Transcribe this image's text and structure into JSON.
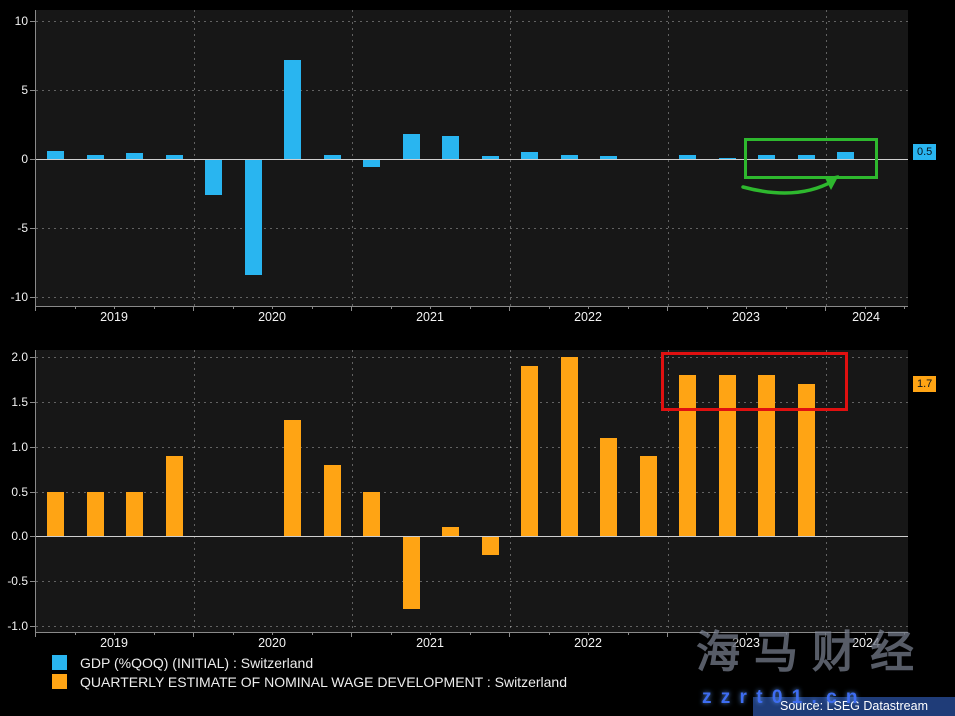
{
  "page": {
    "bg": "#000000",
    "panel_bg": "#171717"
  },
  "chart_data": [
    {
      "type": "bar",
      "series_name": "GDP (%QOQ) (INITIAL) : Switzerland",
      "bar_color": "#29b5f0",
      "ylim": [
        -10,
        10
      ],
      "yticks": [
        10,
        5,
        0,
        -5,
        -10
      ],
      "ytick_labels": [
        "10",
        "5",
        "0",
        "-5",
        "-10"
      ],
      "x_labels": [
        "2019",
        "2020",
        "2021",
        "2022",
        "2023",
        "2024"
      ],
      "x_frequency": "quarterly",
      "x_start": "2019 Q1",
      "values": [
        0.6,
        0.3,
        0.4,
        0.3,
        -2.5,
        -8.3,
        7.2,
        0.3,
        -0.5,
        1.8,
        1.7,
        0.2,
        0.5,
        0.3,
        0.2,
        0.0,
        0.3,
        0.1,
        0.3,
        0.3,
        0.5
      ],
      "last_value": 0.5,
      "last_value_label": "0.5",
      "grid": "dotted",
      "legend_position": "bottom-left"
    },
    {
      "type": "bar",
      "series_name": "QUARTERLY ESTIMATE OF NOMINAL WAGE DEVELOPMENT : Switzerland",
      "bar_color": "#ffa414",
      "ylim": [
        -1.0,
        2.0
      ],
      "yticks": [
        2.0,
        1.5,
        1.0,
        0.5,
        0.0,
        -0.5,
        -1.0
      ],
      "ytick_labels": [
        "2.0",
        "1.5",
        "1.0",
        "0.5",
        "0.0",
        "-0.5",
        "-1.0"
      ],
      "x_labels": [
        "2019",
        "2020",
        "2021",
        "2022",
        "2023",
        "2024"
      ],
      "x_frequency": "quarterly",
      "x_start": "2019 Q1",
      "values": [
        0.5,
        0.5,
        0.5,
        0.9,
        0.0,
        0.0,
        1.3,
        0.8,
        0.5,
        -0.8,
        0.1,
        -0.2,
        1.9,
        2.0,
        1.1,
        0.9,
        1.8,
        1.8,
        1.8,
        1.7
      ],
      "last_value": 1.7,
      "last_value_label": "1.7",
      "grid": "dotted",
      "legend_position": "bottom-left"
    }
  ],
  "legend": [
    {
      "label": "GDP (%QOQ) (INITIAL) : Switzerland",
      "color": "#29b5f0"
    },
    {
      "label": "QUARTERLY ESTIMATE OF NOMINAL WAGE DEVELOPMENT : Switzerland",
      "color": "#ffa414"
    }
  ],
  "annotations": {
    "green": "#2eb82e",
    "red": "#e01010"
  },
  "source": {
    "label": "Source: LSEG Datastream",
    "bg": "#1f3c78"
  },
  "watermark": {
    "line1": "海马财经",
    "line2": "z z r t 0 1 . c n"
  }
}
